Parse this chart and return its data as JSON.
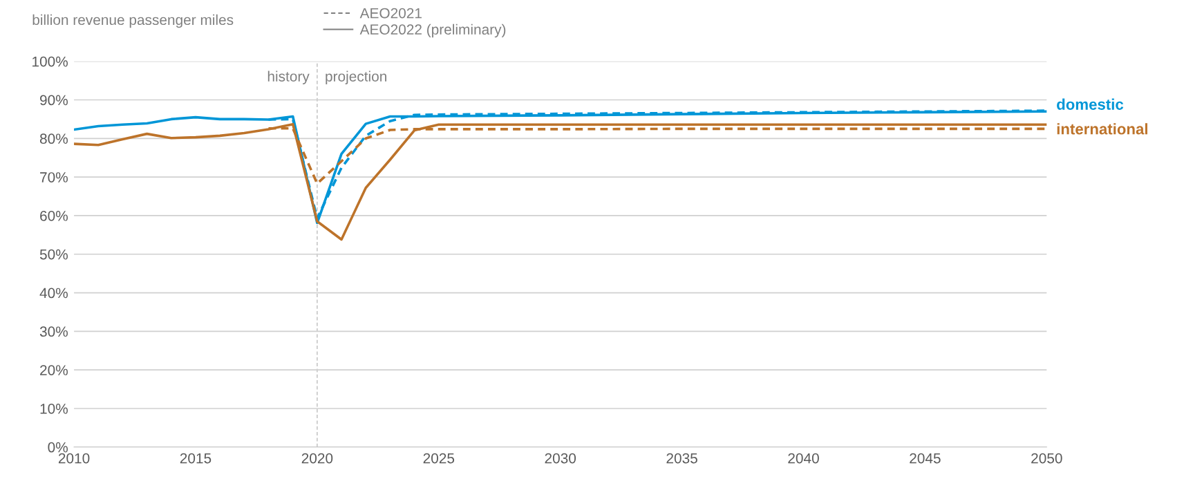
{
  "chart_data": {
    "type": "line",
    "ylabel": "billion revenue passenger miles",
    "x": [
      2010,
      2011,
      2012,
      2013,
      2014,
      2015,
      2016,
      2017,
      2018,
      2019,
      2020,
      2021,
      2022,
      2023,
      2024,
      2025,
      2030,
      2035,
      2040,
      2045,
      2050
    ],
    "series": [
      {
        "name": "domestic",
        "color": "#0096d7",
        "line_style": "solid",
        "values": [
          82.3,
          83.2,
          83.6,
          83.9,
          85.0,
          85.5,
          85.0,
          85.0,
          84.9,
          85.7,
          58.1,
          76.0,
          83.8,
          85.7,
          85.7,
          85.8,
          86.0,
          86.3,
          86.6,
          86.8,
          87.0
        ]
      },
      {
        "color": "#0096d7",
        "line_style": "dashed",
        "x": [
          2018,
          2019,
          2020,
          2021,
          2022,
          2023,
          2024,
          2025,
          2030,
          2035,
          2040,
          2045,
          2050
        ],
        "values": [
          84.9,
          85.0,
          59.3,
          72.4,
          80.7,
          84.5,
          86.1,
          86.2,
          86.4,
          86.6,
          86.8,
          87.0,
          87.2
        ]
      },
      {
        "name": "international",
        "color": "#bd732a",
        "line_style": "solid",
        "values": [
          78.6,
          78.3,
          79.8,
          81.2,
          80.1,
          80.3,
          80.7,
          81.4,
          82.4,
          83.7,
          58.5,
          53.8,
          67.2,
          74.5,
          82.1,
          83.6,
          83.6,
          83.6,
          83.6,
          83.6,
          83.6
        ]
      },
      {
        "color": "#bd732a",
        "line_style": "dashed",
        "x": [
          2018,
          2019,
          2020,
          2021,
          2022,
          2023,
          2024,
          2025,
          2030,
          2035,
          2040,
          2045,
          2050
        ],
        "values": [
          82.6,
          82.6,
          68.3,
          74.1,
          80.0,
          82.2,
          82.4,
          82.4,
          82.4,
          82.5,
          82.5,
          82.5,
          82.5
        ]
      }
    ],
    "xlim": [
      2010,
      2050
    ],
    "xticks": [
      2010,
      2015,
      2020,
      2025,
      2030,
      2035,
      2040,
      2045,
      2050
    ],
    "ylim": [
      0,
      100
    ],
    "yticks": [
      {
        "value": 0,
        "label": "0%"
      },
      {
        "value": 10,
        "label": "10%"
      },
      {
        "value": 20,
        "label": "20%"
      },
      {
        "value": 30,
        "label": "30%"
      },
      {
        "value": 40,
        "label": "40%"
      },
      {
        "value": 50,
        "label": "50%"
      },
      {
        "value": 60,
        "label": "60%"
      },
      {
        "value": 70,
        "label": "70%"
      },
      {
        "value": 80,
        "label": "80%"
      },
      {
        "value": 90,
        "label": "90%"
      },
      {
        "value": 100,
        "label": "100%"
      }
    ],
    "grid": "y",
    "legend": "top",
    "ref_lines": [
      {
        "axis": "x",
        "value": 2020,
        "color": "#c8c8c8",
        "line_style": "dashed"
      }
    ],
    "annotations": [
      "AEO2021",
      "AEO2022 (preliminary)",
      "history",
      "projection"
    ]
  }
}
